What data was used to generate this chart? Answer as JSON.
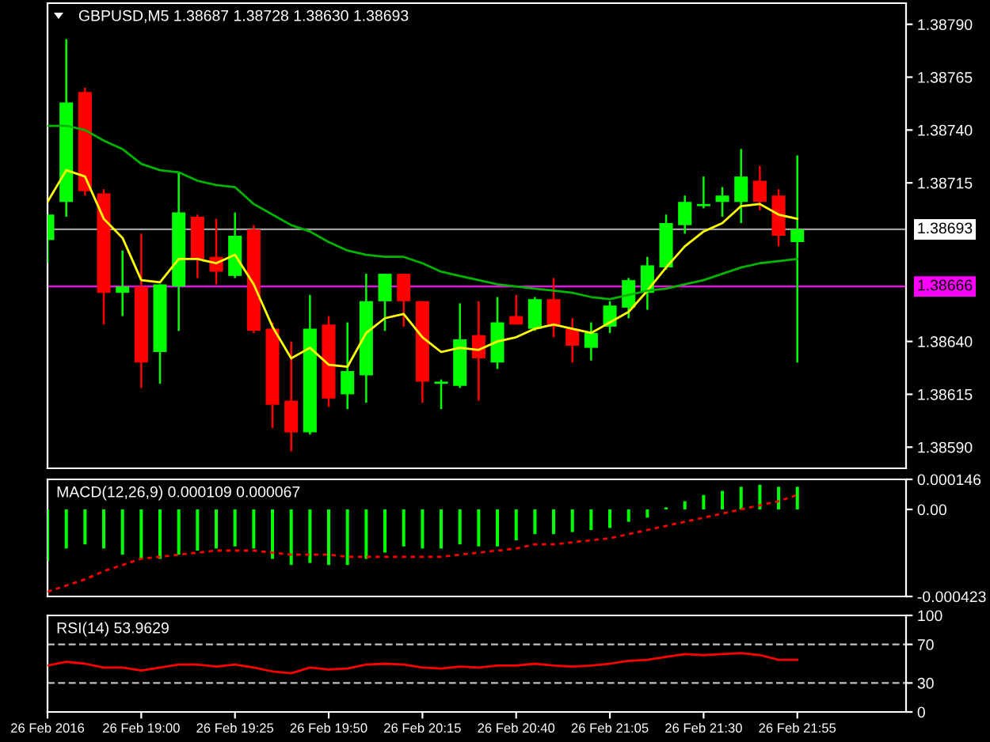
{
  "chart_data": [
    {
      "type": "candlestick",
      "title": "GBPUSD,M5 1.38687 1.38728 1.38630 1.38693",
      "x": [
        "2016-02-26T18:35",
        "2016-02-26T18:40",
        "2016-02-26T18:45",
        "2016-02-26T18:50",
        "2016-02-26T18:55",
        "2016-02-26T19:00",
        "2016-02-26T19:05",
        "2016-02-26T19:10",
        "2016-02-26T19:15",
        "2016-02-26T19:20",
        "2016-02-26T19:25",
        "2016-02-26T19:30",
        "2016-02-26T19:35",
        "2016-02-26T19:40",
        "2016-02-26T19:45",
        "2016-02-26T19:50",
        "2016-02-26T19:55",
        "2016-02-26T20:00",
        "2016-02-26T20:05",
        "2016-02-26T20:10",
        "2016-02-26T20:15",
        "2016-02-26T20:20",
        "2016-02-26T20:25",
        "2016-02-26T20:30",
        "2016-02-26T20:35",
        "2016-02-26T20:40",
        "2016-02-26T20:45",
        "2016-02-26T20:50",
        "2016-02-26T20:55",
        "2016-02-26T21:00",
        "2016-02-26T21:05",
        "2016-02-26T21:10",
        "2016-02-26T21:15",
        "2016-02-26T21:20",
        "2016-02-26T21:25",
        "2016-02-26T21:30",
        "2016-02-26T21:35",
        "2016-02-26T21:40",
        "2016-02-26T21:45",
        "2016-02-26T21:50",
        "2016-02-26T21:55"
      ],
      "ohlc": [
        [
          1.38688,
          1.387,
          1.38677,
          1.387
        ],
        [
          1.38706,
          1.38783,
          1.38699,
          1.38753
        ],
        [
          1.38758,
          1.3876,
          1.38709,
          1.38711
        ],
        [
          1.3871,
          1.38712,
          1.38648,
          1.38663
        ],
        [
          1.38663,
          1.38683,
          1.38652,
          1.38666
        ],
        [
          1.38666,
          1.38691,
          1.38618,
          1.3863
        ],
        [
          1.38635,
          1.38667,
          1.3862,
          1.38667
        ],
        [
          1.38666,
          1.3872,
          1.38645,
          1.38701
        ],
        [
          1.38699,
          1.387,
          1.3867,
          1.38679
        ],
        [
          1.3868,
          1.38698,
          1.38667,
          1.38673
        ],
        [
          1.38671,
          1.38701,
          1.3867,
          1.3869
        ],
        [
          1.38693,
          1.38695,
          1.38644,
          1.38645
        ],
        [
          1.38646,
          1.38649,
          1.38599,
          1.3861
        ],
        [
          1.38612,
          1.3864,
          1.38588,
          1.38597
        ],
        [
          1.38597,
          1.38662,
          1.38596,
          1.38646
        ],
        [
          1.38648,
          1.38652,
          1.38609,
          1.38613
        ],
        [
          1.38615,
          1.38649,
          1.38608,
          1.38626
        ],
        [
          1.38624,
          1.38672,
          1.38611,
          1.38659
        ],
        [
          1.38659,
          1.38672,
          1.38645,
          1.38672
        ],
        [
          1.38672,
          1.38672,
          1.38647,
          1.38659
        ],
        [
          1.38659,
          1.38659,
          1.38611,
          1.38621
        ],
        [
          1.3862,
          1.38622,
          1.38608,
          1.38621
        ],
        [
          1.38619,
          1.38658,
          1.38618,
          1.38641
        ],
        [
          1.38643,
          1.38659,
          1.38612,
          1.38632
        ],
        [
          1.3863,
          1.38661,
          1.38627,
          1.38649
        ],
        [
          1.38652,
          1.38662,
          1.38648,
          1.38648
        ],
        [
          1.38646,
          1.38661,
          1.38645,
          1.3866
        ],
        [
          1.3866,
          1.3867,
          1.38642,
          1.38647
        ],
        [
          1.38646,
          1.38651,
          1.3863,
          1.38638
        ],
        [
          1.38637,
          1.38649,
          1.38631,
          1.38644
        ],
        [
          1.38647,
          1.38659,
          1.38644,
          1.38657
        ],
        [
          1.38656,
          1.3867,
          1.38651,
          1.38669
        ],
        [
          1.38663,
          1.3868,
          1.38655,
          1.38676
        ],
        [
          1.38675,
          1.387,
          1.38674,
          1.38696
        ],
        [
          1.38695,
          1.38709,
          1.38691,
          1.38706
        ],
        [
          1.38704,
          1.38718,
          1.38703,
          1.38705
        ],
        [
          1.38706,
          1.38713,
          1.38699,
          1.38709
        ],
        [
          1.38706,
          1.38731,
          1.38696,
          1.38718
        ],
        [
          1.38716,
          1.38723,
          1.38702,
          1.38706
        ],
        [
          1.38709,
          1.38712,
          1.38685,
          1.3869
        ],
        [
          1.38687,
          1.38728,
          1.3863,
          1.38693
        ]
      ],
      "colors": [
        "#00ff00",
        "#00ff00",
        "#ff0000",
        "#ff0000",
        "#00ff00",
        "#ff0000",
        "#00ff00",
        "#00ff00",
        "#ff0000",
        "#ff0000",
        "#00ff00",
        "#ff0000",
        "#ff0000",
        "#ff0000",
        "#00ff00",
        "#ff0000",
        "#00ff00",
        "#00ff00",
        "#00ff00",
        "#ff0000",
        "#ff0000",
        "#00ff00",
        "#00ff00",
        "#ff0000",
        "#00ff00",
        "#ff0000",
        "#00ff00",
        "#ff0000",
        "#ff0000",
        "#00ff00",
        "#00ff00",
        "#00ff00",
        "#00ff00",
        "#00ff00",
        "#00ff00",
        "#00ff00",
        "#00ff00",
        "#00ff00",
        "#ff0000",
        "#ff0000",
        "#00ff00"
      ],
      "series": [
        {
          "type": "line",
          "color": "#ffff00",
          "values": [
            1.38706,
            1.38721,
            1.38718,
            1.38698,
            1.38689,
            1.38669,
            1.38668,
            1.38679,
            1.38679,
            1.38677,
            1.38681,
            1.38667,
            1.38647,
            1.38632,
            1.38637,
            1.38629,
            1.38628,
            1.38644,
            1.38651,
            1.38653,
            1.38642,
            1.38635,
            1.38637,
            1.38636,
            1.3864,
            1.38642,
            1.38646,
            1.38648,
            1.38646,
            1.38644,
            1.38649,
            1.38654,
            1.38664,
            1.38675,
            1.38685,
            1.38692,
            1.38696,
            1.38704,
            1.38705,
            1.387,
            1.38698
          ]
        },
        {
          "type": "line",
          "color": "#00b400",
          "values": [
            1.38742,
            1.38742,
            1.3874,
            1.38735,
            1.38731,
            1.38724,
            1.38721,
            1.3872,
            1.38716,
            1.38714,
            1.38713,
            1.38705,
            1.387,
            1.38695,
            1.38692,
            1.38687,
            1.38683,
            1.38681,
            1.3868,
            1.3868,
            1.38677,
            1.38673,
            1.38671,
            1.38669,
            1.38667,
            1.38666,
            1.38665,
            1.38664,
            1.38663,
            1.38661,
            1.3866,
            1.38662,
            1.38664,
            1.38665,
            1.38667,
            1.38669,
            1.38672,
            1.38675,
            1.38677,
            1.38678,
            1.38679
          ]
        }
      ],
      "ref_lines": [
        {
          "axis": "y",
          "value": 1.38693,
          "label": "1.38693",
          "color": "#a0a0a0"
        },
        {
          "axis": "y",
          "value": 1.38666,
          "label": "1.38666",
          "color": "#ff00ff"
        }
      ],
      "xlim": [
        "2016-02-26T18:35",
        "2016-02-26T22:24"
      ],
      "ylim": [
        1.3858,
        1.388
      ],
      "yticks": [
        {
          "value": 1.3859,
          "label": "1.38590"
        },
        {
          "value": 1.38615,
          "label": "1.38615"
        },
        {
          "value": 1.3864,
          "label": "1.38640"
        },
        {
          "value": 1.38715,
          "label": "1.38715"
        },
        {
          "value": 1.3874,
          "label": "1.38740"
        },
        {
          "value": 1.38765,
          "label": "1.38765"
        },
        {
          "value": 1.3879,
          "label": "1.38790"
        }
      ],
      "tick_labels": "y"
    },
    {
      "type": "bar",
      "title": "MACD(12,26,9) 0.000109 0.000067",
      "x": [
        "2016-02-26T18:35",
        "2016-02-26T18:40",
        "2016-02-26T18:45",
        "2016-02-26T18:50",
        "2016-02-26T18:55",
        "2016-02-26T19:00",
        "2016-02-26T19:05",
        "2016-02-26T19:10",
        "2016-02-26T19:15",
        "2016-02-26T19:20",
        "2016-02-26T19:25",
        "2016-02-26T19:30",
        "2016-02-26T19:35",
        "2016-02-26T19:40",
        "2016-02-26T19:45",
        "2016-02-26T19:50",
        "2016-02-26T19:55",
        "2016-02-26T20:00",
        "2016-02-26T20:05",
        "2016-02-26T20:10",
        "2016-02-26T20:15",
        "2016-02-26T20:20",
        "2016-02-26T20:25",
        "2016-02-26T20:30",
        "2016-02-26T20:35",
        "2016-02-26T20:40",
        "2016-02-26T20:45",
        "2016-02-26T20:50",
        "2016-02-26T20:55",
        "2016-02-26T21:00",
        "2016-02-26T21:05",
        "2016-02-26T21:10",
        "2016-02-26T21:15",
        "2016-02-26T21:20",
        "2016-02-26T21:25",
        "2016-02-26T21:30",
        "2016-02-26T21:35",
        "2016-02-26T21:40",
        "2016-02-26T21:45",
        "2016-02-26T21:50",
        "2016-02-26T21:55"
      ],
      "series": [
        {
          "color": "#00ff00",
          "values": [
            -0.00025,
            -0.00019,
            -0.00017,
            -0.00019,
            -0.00022,
            -0.00024,
            -0.00024,
            -0.00022,
            -0.0002,
            -0.00019,
            -0.00018,
            -0.00019,
            -0.00024,
            -0.00027,
            -0.00026,
            -0.00027,
            -0.00027,
            -0.00024,
            -0.00021,
            -0.00018,
            -0.00019,
            -0.00019,
            -0.00017,
            -0.00018,
            -0.00018,
            -0.00015,
            -0.00012,
            -0.00012,
            -0.00011,
            -0.0001,
            -9e-05,
            -6e-05,
            -4e-05,
            1e-05,
            4e-05,
            7e-05,
            9e-05,
            0.00011,
            0.00012,
            0.00011,
            0.00011
          ]
        },
        {
          "type": "line",
          "color": "#ff0000",
          "line_style": "dotted",
          "values": [
            -0.0004,
            -0.00037,
            -0.00034,
            -0.0003,
            -0.00027,
            -0.00024,
            -0.00023,
            -0.00022,
            -0.00021,
            -0.0002,
            -0.0002,
            -0.0002,
            -0.00021,
            -0.00022,
            -0.00022,
            -0.00022,
            -0.00023,
            -0.00023,
            -0.00023,
            -0.00023,
            -0.00023,
            -0.00023,
            -0.00022,
            -0.00021,
            -0.0002,
            -0.00019,
            -0.00017,
            -0.00017,
            -0.00016,
            -0.00015,
            -0.00014,
            -0.00012,
            -0.0001,
            -8e-05,
            -6e-05,
            -4e-05,
            -2e-05,
            0.0,
            2e-05,
            4e-05,
            7e-05
          ]
        }
      ],
      "xlim": [
        "2016-02-26T18:35",
        "2016-02-26T22:24"
      ],
      "ylim": [
        -0.000423,
        0.000146
      ],
      "yticks": [
        -0.000423,
        {
          "value": 0,
          "label": "0.00"
        },
        0.000146
      ],
      "tick_labels": "y"
    },
    {
      "type": "line",
      "title": "RSI(14) 53.9629",
      "x": [
        "2016-02-26T18:35",
        "2016-02-26T18:40",
        "2016-02-26T18:45",
        "2016-02-26T18:50",
        "2016-02-26T18:55",
        "2016-02-26T19:00",
        "2016-02-26T19:05",
        "2016-02-26T19:10",
        "2016-02-26T19:15",
        "2016-02-26T19:20",
        "2016-02-26T19:25",
        "2016-02-26T19:30",
        "2016-02-26T19:35",
        "2016-02-26T19:40",
        "2016-02-26T19:45",
        "2016-02-26T19:50",
        "2016-02-26T19:55",
        "2016-02-26T20:00",
        "2016-02-26T20:05",
        "2016-02-26T20:10",
        "2016-02-26T20:15",
        "2016-02-26T20:20",
        "2016-02-26T20:25",
        "2016-02-26T20:30",
        "2016-02-26T20:35",
        "2016-02-26T20:40",
        "2016-02-26T20:45",
        "2016-02-26T20:50",
        "2016-02-26T20:55",
        "2016-02-26T21:00",
        "2016-02-26T21:05",
        "2016-02-26T21:10",
        "2016-02-26T21:15",
        "2016-02-26T21:20",
        "2016-02-26T21:25",
        "2016-02-26T21:30",
        "2016-02-26T21:35",
        "2016-02-26T21:40",
        "2016-02-26T21:45",
        "2016-02-26T21:50",
        "2016-02-26T21:55"
      ],
      "series": [
        {
          "color": "#ff0000",
          "values": [
            48,
            52,
            50,
            46,
            46,
            43,
            46,
            49,
            49,
            47,
            49,
            46,
            42,
            40,
            46,
            44,
            45,
            49,
            50,
            49,
            46,
            45,
            47,
            46,
            48,
            48,
            50,
            48,
            47,
            48,
            50,
            53,
            54,
            57,
            60,
            59,
            60,
            61,
            59,
            54,
            54
          ]
        }
      ],
      "ref_lines": [
        {
          "axis": "y",
          "value": 70,
          "color": "#c0c0c0",
          "line_style": "dashed"
        },
        {
          "axis": "y",
          "value": 30,
          "color": "#c0c0c0",
          "line_style": "dashed"
        }
      ],
      "xlim": [
        "2016-02-26T18:35",
        "2016-02-26T22:24"
      ],
      "ylim": [
        0,
        100
      ],
      "yticks": [
        0,
        30,
        70,
        100
      ],
      "xticks": [
        {
          "value": "2016-02-26T18:35",
          "label": "26 Feb 2016"
        },
        {
          "value": "2016-02-26T19:00",
          "label": "26 Feb 19:00"
        },
        {
          "value": "2016-02-26T19:25",
          "label": "26 Feb 19:25"
        },
        {
          "value": "2016-02-26T19:50",
          "label": "26 Feb 19:50"
        },
        {
          "value": "2016-02-26T20:15",
          "label": "26 Feb 20:15"
        },
        {
          "value": "2016-02-26T20:40",
          "label": "26 Feb 20:40"
        },
        {
          "value": "2016-02-26T21:05",
          "label": "26 Feb 21:05"
        },
        {
          "value": "2016-02-26T21:30",
          "label": "26 Feb 21:30"
        },
        {
          "value": "2016-02-26T21:55",
          "label": "26 Feb 21:55"
        }
      ]
    }
  ]
}
